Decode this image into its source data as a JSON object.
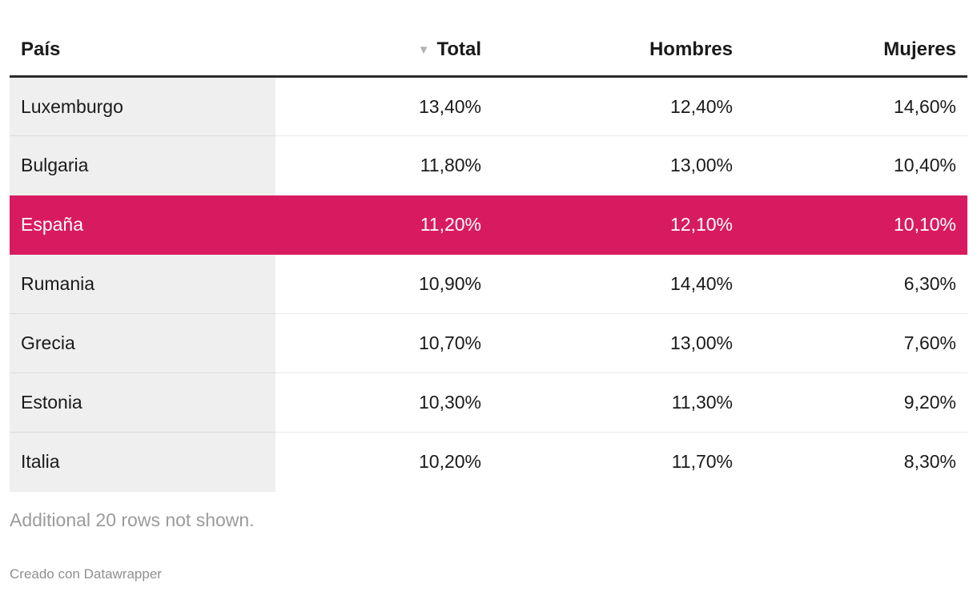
{
  "table": {
    "columns": [
      {
        "key": "pais",
        "label": "País",
        "align": "left",
        "sorted": false
      },
      {
        "key": "total",
        "label": "Total",
        "align": "right",
        "sorted": true
      },
      {
        "key": "hombres",
        "label": "Hombres",
        "align": "right",
        "sorted": false
      },
      {
        "key": "mujeres",
        "label": "Mujeres",
        "align": "right",
        "sorted": false
      }
    ],
    "sort_icon": "▼",
    "rows": [
      {
        "pais": "Luxemburgo",
        "total": "13,40%",
        "hombres": "12,40%",
        "mujeres": "14,60%",
        "highlight": false
      },
      {
        "pais": "Bulgaria",
        "total": "11,80%",
        "hombres": "13,00%",
        "mujeres": "10,40%",
        "highlight": false
      },
      {
        "pais": "España",
        "total": "11,20%",
        "hombres": "12,10%",
        "mujeres": "10,10%",
        "highlight": true
      },
      {
        "pais": "Rumania",
        "total": "10,90%",
        "hombres": "14,40%",
        "mujeres": "6,30%",
        "highlight": false
      },
      {
        "pais": "Grecia",
        "total": "10,70%",
        "hombres": "13,00%",
        "mujeres": "7,60%",
        "highlight": false
      },
      {
        "pais": "Estonia",
        "total": "10,30%",
        "hombres": "11,30%",
        "mujeres": "9,20%",
        "highlight": false
      },
      {
        "pais": "Italia",
        "total": "10,20%",
        "hombres": "11,70%",
        "mujeres": "8,30%",
        "highlight": false
      }
    ],
    "footer_note": "Additional 20 rows not shown.",
    "attribution": "Creado con Datawrapper",
    "colors": {
      "highlight_row": "#d81b60",
      "first_column_bg": "#efefef",
      "header_border": "#2b2b2b",
      "muted_text": "#9b9b9b"
    }
  },
  "chart_data": {
    "type": "table",
    "columns": [
      "País",
      "Total",
      "Hombres",
      "Mujeres"
    ],
    "rows": [
      [
        "Luxemburgo",
        13.4,
        12.4,
        14.6
      ],
      [
        "Bulgaria",
        11.8,
        13.0,
        10.4
      ],
      [
        "España",
        11.2,
        12.1,
        10.1
      ],
      [
        "Rumania",
        10.9,
        14.4,
        6.3
      ],
      [
        "Grecia",
        10.7,
        13.0,
        7.6
      ],
      [
        "Estonia",
        10.3,
        11.3,
        9.2
      ],
      [
        "Italia",
        10.2,
        11.7,
        8.3
      ]
    ],
    "units": "percent",
    "decimal_separator": ",",
    "sorted_by": "Total",
    "sort_order": "descending",
    "highlighted_row": "España",
    "hidden_rows_note": "Additional 20 rows not shown.",
    "attribution": "Creado con Datawrapper"
  }
}
